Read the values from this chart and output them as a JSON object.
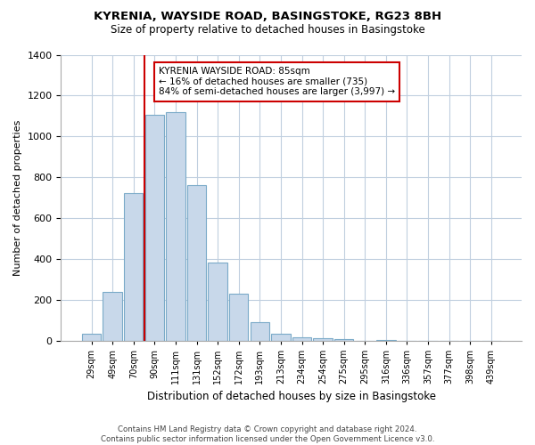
{
  "title": "KYRENIA, WAYSIDE ROAD, BASINGSTOKE, RG23 8BH",
  "subtitle": "Size of property relative to detached houses in Basingstoke",
  "xlabel": "Distribution of detached houses by size in Basingstoke",
  "ylabel": "Number of detached properties",
  "footer_line1": "Contains HM Land Registry data © Crown copyright and database right 2024.",
  "footer_line2": "Contains public sector information licensed under the Open Government Licence v3.0.",
  "bin_labels": [
    "29sqm",
    "49sqm",
    "70sqm",
    "90sqm",
    "111sqm",
    "131sqm",
    "152sqm",
    "172sqm",
    "193sqm",
    "213sqm",
    "234sqm",
    "254sqm",
    "275sqm",
    "295sqm",
    "316sqm",
    "336sqm",
    "357sqm",
    "377sqm",
    "398sqm",
    "439sqm"
  ],
  "bar_values": [
    35,
    240,
    720,
    1105,
    1120,
    760,
    380,
    230,
    90,
    32,
    18,
    10,
    5,
    0,
    2,
    0,
    0,
    0,
    0,
    0
  ],
  "bar_color": "#c8d8ea",
  "bar_edge_color": "#7aaac8",
  "vline_pos": 2.5,
  "vline_color": "#cc0000",
  "annotation_text": "KYRENIA WAYSIDE ROAD: 85sqm\n← 16% of detached houses are smaller (735)\n84% of semi-detached houses are larger (3,997) →",
  "annotation_box_color": "#ffffff",
  "annotation_box_edge": "#cc0000",
  "ylim": [
    0,
    1400
  ],
  "yticks": [
    0,
    200,
    400,
    600,
    800,
    1000,
    1200,
    1400
  ],
  "bg_color": "#ffffff",
  "grid_color": "#c0cfdf"
}
